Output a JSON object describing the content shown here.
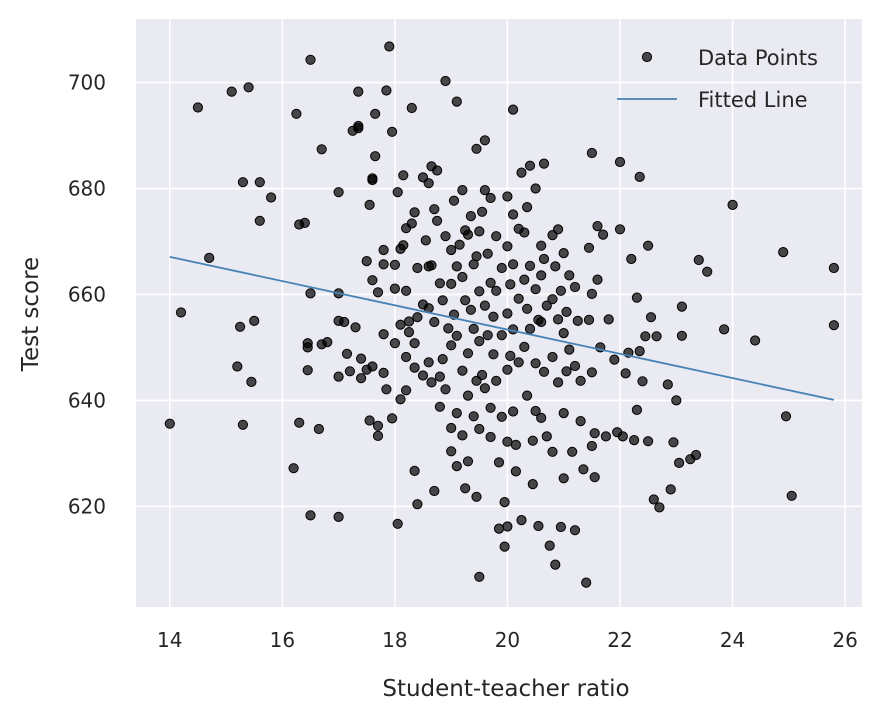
{
  "chart_data": {
    "type": "scatter",
    "title": "",
    "xlabel": "Student-teacher ratio",
    "ylabel": "Test score",
    "xlim": [
      13.4,
      26.3
    ],
    "ylim": [
      601,
      712
    ],
    "xticks": [
      14,
      16,
      18,
      20,
      22,
      24,
      26
    ],
    "yticks": [
      620,
      640,
      660,
      680,
      700
    ],
    "grid": true,
    "legend": {
      "position": "top-right",
      "entries": [
        "Data Points",
        "Fitted Line"
      ]
    },
    "colors": {
      "background": "#EAEAF2",
      "grid": "#FFFFFF",
      "points": "#000000",
      "line": "#4682B4"
    },
    "series": [
      {
        "name": "Data Points",
        "type": "scatter",
        "points": [
          [
            14.0,
            635.6
          ],
          [
            14.2,
            656.6
          ],
          [
            14.5,
            695.3
          ],
          [
            14.7,
            666.9
          ],
          [
            15.1,
            698.3
          ],
          [
            15.3,
            681.2
          ],
          [
            15.25,
            653.9
          ],
          [
            15.2,
            646.4
          ],
          [
            15.3,
            635.4
          ],
          [
            15.4,
            699.1
          ],
          [
            15.45,
            643.5
          ],
          [
            15.5,
            655.0
          ],
          [
            15.6,
            681.2
          ],
          [
            15.6,
            673.9
          ],
          [
            15.8,
            678.3
          ],
          [
            16.2,
            627.2
          ],
          [
            16.25,
            694.1
          ],
          [
            16.3,
            673.2
          ],
          [
            16.3,
            635.8
          ],
          [
            16.4,
            673.5
          ],
          [
            16.45,
            650.8
          ],
          [
            16.45,
            645.7
          ],
          [
            16.5,
            704.3
          ],
          [
            16.5,
            660.2
          ],
          [
            16.5,
            618.3
          ],
          [
            16.45,
            650.0
          ],
          [
            16.65,
            634.6
          ],
          [
            16.7,
            687.4
          ],
          [
            16.7,
            650.6
          ],
          [
            16.8,
            651.0
          ],
          [
            17.0,
            679.3
          ],
          [
            17.0,
            660.2
          ],
          [
            17.0,
            655.0
          ],
          [
            17.0,
            644.5
          ],
          [
            17.0,
            618.0
          ],
          [
            17.1,
            654.8
          ],
          [
            17.15,
            648.8
          ],
          [
            17.2,
            645.5
          ],
          [
            17.25,
            690.9
          ],
          [
            17.3,
            653.8
          ],
          [
            17.35,
            691.8
          ],
          [
            17.35,
            698.3
          ],
          [
            17.35,
            691.4
          ],
          [
            17.4,
            647.9
          ],
          [
            17.4,
            644.2
          ],
          [
            17.5,
            666.3
          ],
          [
            17.5,
            645.8
          ],
          [
            17.55,
            676.9
          ],
          [
            17.55,
            636.2
          ],
          [
            17.6,
            681.9
          ],
          [
            17.6,
            681.6
          ],
          [
            17.6,
            662.7
          ],
          [
            17.6,
            646.4
          ],
          [
            17.65,
            694.1
          ],
          [
            17.65,
            686.1
          ],
          [
            17.7,
            633.3
          ],
          [
            17.7,
            635.2
          ],
          [
            17.7,
            660.4
          ],
          [
            17.8,
            668.4
          ],
          [
            17.8,
            665.7
          ],
          [
            17.8,
            652.5
          ],
          [
            17.8,
            645.2
          ],
          [
            17.85,
            642.1
          ],
          [
            17.85,
            698.5
          ],
          [
            17.9,
            706.8
          ],
          [
            17.95,
            690.7
          ],
          [
            17.95,
            636.6
          ],
          [
            18.0,
            665.6
          ],
          [
            18.0,
            661.1
          ],
          [
            18.0,
            650.8
          ],
          [
            18.05,
            679.3
          ],
          [
            18.05,
            616.7
          ],
          [
            18.1,
            668.6
          ],
          [
            18.1,
            654.3
          ],
          [
            18.1,
            640.2
          ],
          [
            18.15,
            682.5
          ],
          [
            18.15,
            669.3
          ],
          [
            18.2,
            672.5
          ],
          [
            18.2,
            660.7
          ],
          [
            18.2,
            648.2
          ],
          [
            18.2,
            641.9
          ],
          [
            18.25,
            654.9
          ],
          [
            18.25,
            652.9
          ],
          [
            18.3,
            695.2
          ],
          [
            18.3,
            673.4
          ],
          [
            18.35,
            675.5
          ],
          [
            18.35,
            650.8
          ],
          [
            18.35,
            646.2
          ],
          [
            18.4,
            665.0
          ],
          [
            18.4,
            655.7
          ],
          [
            18.4,
            620.4
          ],
          [
            18.35,
            626.7
          ],
          [
            18.5,
            682.1
          ],
          [
            18.5,
            658.1
          ],
          [
            18.5,
            644.7
          ],
          [
            18.55,
            670.2
          ],
          [
            18.6,
            681.0
          ],
          [
            18.6,
            665.3
          ],
          [
            18.6,
            657.4
          ],
          [
            18.6,
            647.2
          ],
          [
            18.65,
            684.2
          ],
          [
            18.65,
            665.5
          ],
          [
            18.65,
            643.4
          ],
          [
            18.7,
            622.9
          ],
          [
            18.7,
            676.1
          ],
          [
            18.7,
            654.8
          ],
          [
            18.75,
            683.4
          ],
          [
            18.75,
            673.9
          ],
          [
            18.8,
            662.1
          ],
          [
            18.8,
            644.5
          ],
          [
            18.8,
            638.8
          ],
          [
            18.85,
            658.9
          ],
          [
            18.85,
            647.8
          ],
          [
            18.9,
            700.3
          ],
          [
            18.9,
            671.0
          ],
          [
            18.9,
            642.1
          ],
          [
            18.95,
            653.6
          ],
          [
            19.0,
            668.4
          ],
          [
            19.0,
            662.0
          ],
          [
            19.0,
            650.4
          ],
          [
            19.0,
            634.8
          ],
          [
            19.0,
            630.4
          ],
          [
            19.05,
            677.7
          ],
          [
            19.05,
            656.2
          ],
          [
            19.1,
            696.4
          ],
          [
            19.1,
            665.3
          ],
          [
            19.1,
            652.2
          ],
          [
            19.1,
            637.6
          ],
          [
            19.1,
            627.6
          ],
          [
            19.15,
            669.4
          ],
          [
            19.2,
            679.7
          ],
          [
            19.2,
            663.3
          ],
          [
            19.2,
            645.6
          ],
          [
            19.2,
            633.4
          ],
          [
            19.25,
            672.1
          ],
          [
            19.25,
            658.9
          ],
          [
            19.25,
            623.4
          ],
          [
            19.3,
            671.3
          ],
          [
            19.3,
            648.9
          ],
          [
            19.3,
            640.9
          ],
          [
            19.3,
            628.5
          ],
          [
            19.35,
            674.8
          ],
          [
            19.35,
            657.1
          ],
          [
            19.4,
            665.7
          ],
          [
            19.4,
            653.5
          ],
          [
            19.4,
            637.0
          ],
          [
            19.45,
            687.5
          ],
          [
            19.45,
            667.2
          ],
          [
            19.45,
            643.7
          ],
          [
            19.45,
            621.8
          ],
          [
            19.5,
            671.9
          ],
          [
            19.5,
            660.6
          ],
          [
            19.5,
            651.2
          ],
          [
            19.5,
            634.6
          ],
          [
            19.5,
            606.7
          ],
          [
            19.55,
            675.6
          ],
          [
            19.55,
            644.8
          ],
          [
            19.6,
            689.1
          ],
          [
            19.6,
            679.7
          ],
          [
            19.6,
            657.9
          ],
          [
            19.6,
            642.3
          ],
          [
            19.65,
            667.7
          ],
          [
            19.65,
            652.3
          ],
          [
            19.7,
            678.2
          ],
          [
            19.7,
            662.2
          ],
          [
            19.7,
            638.6
          ],
          [
            19.7,
            633.1
          ],
          [
            19.75,
            655.8
          ],
          [
            19.75,
            648.7
          ],
          [
            19.8,
            671.0
          ],
          [
            19.8,
            660.7
          ],
          [
            19.8,
            643.7
          ],
          [
            19.85,
            628.3
          ],
          [
            19.85,
            615.8
          ],
          [
            19.9,
            665.0
          ],
          [
            19.9,
            652.3
          ],
          [
            19.9,
            636.9
          ],
          [
            19.95,
            620.8
          ],
          [
            19.95,
            612.4
          ],
          [
            20.0,
            678.5
          ],
          [
            20.0,
            669.1
          ],
          [
            20.0,
            656.4
          ],
          [
            20.0,
            645.8
          ],
          [
            20.0,
            632.2
          ],
          [
            20.0,
            616.2
          ],
          [
            20.05,
            661.9
          ],
          [
            20.05,
            648.4
          ],
          [
            20.1,
            694.9
          ],
          [
            20.1,
            675.1
          ],
          [
            20.1,
            665.7
          ],
          [
            20.1,
            653.4
          ],
          [
            20.1,
            637.9
          ],
          [
            20.15,
            631.6
          ],
          [
            20.15,
            626.6
          ],
          [
            20.2,
            672.4
          ],
          [
            20.2,
            659.2
          ],
          [
            20.2,
            647.2
          ],
          [
            20.25,
            683.0
          ],
          [
            20.25,
            617.4
          ],
          [
            20.3,
            671.7
          ],
          [
            20.3,
            662.8
          ],
          [
            20.3,
            650.1
          ],
          [
            20.35,
            676.5
          ],
          [
            20.35,
            657.3
          ],
          [
            20.35,
            640.9
          ],
          [
            20.4,
            684.3
          ],
          [
            20.4,
            665.4
          ],
          [
            20.4,
            653.5
          ],
          [
            20.45,
            632.4
          ],
          [
            20.45,
            624.2
          ],
          [
            20.5,
            680.0
          ],
          [
            20.5,
            661.0
          ],
          [
            20.5,
            647.0
          ],
          [
            20.5,
            638.0
          ],
          [
            20.55,
            655.2
          ],
          [
            20.55,
            616.3
          ],
          [
            20.6,
            669.2
          ],
          [
            20.6,
            663.6
          ],
          [
            20.6,
            654.8
          ],
          [
            20.6,
            636.7
          ],
          [
            20.65,
            684.7
          ],
          [
            20.65,
            666.7
          ],
          [
            20.65,
            645.4
          ],
          [
            20.7,
            657.9
          ],
          [
            20.7,
            633.2
          ],
          [
            20.75,
            612.6
          ],
          [
            20.8,
            671.2
          ],
          [
            20.8,
            659.1
          ],
          [
            20.8,
            648.2
          ],
          [
            20.8,
            630.3
          ],
          [
            20.85,
            665.3
          ],
          [
            20.85,
            609.0
          ],
          [
            20.9,
            672.3
          ],
          [
            20.9,
            655.3
          ],
          [
            20.9,
            643.4
          ],
          [
            20.95,
            660.7
          ],
          [
            20.95,
            616.1
          ],
          [
            21.0,
            667.8
          ],
          [
            21.0,
            652.7
          ],
          [
            21.0,
            637.6
          ],
          [
            21.0,
            625.3
          ],
          [
            21.05,
            656.7
          ],
          [
            21.05,
            645.5
          ],
          [
            21.1,
            663.6
          ],
          [
            21.1,
            649.6
          ],
          [
            21.15,
            630.3
          ],
          [
            21.2,
            661.4
          ],
          [
            21.2,
            646.5
          ],
          [
            21.2,
            615.5
          ],
          [
            21.25,
            655.0
          ],
          [
            21.3,
            643.7
          ],
          [
            21.3,
            636.1
          ],
          [
            21.35,
            627.0
          ],
          [
            21.4,
            605.6
          ],
          [
            21.45,
            668.8
          ],
          [
            21.45,
            655.2
          ],
          [
            21.5,
            686.7
          ],
          [
            21.5,
            660.1
          ],
          [
            21.5,
            645.3
          ],
          [
            21.5,
            631.4
          ],
          [
            21.55,
            633.8
          ],
          [
            21.55,
            625.5
          ],
          [
            21.6,
            672.9
          ],
          [
            21.6,
            662.8
          ],
          [
            21.65,
            650.0
          ],
          [
            21.7,
            671.3
          ],
          [
            21.75,
            633.2
          ],
          [
            21.8,
            655.3
          ],
          [
            21.9,
            647.7
          ],
          [
            21.95,
            634.0
          ],
          [
            22.0,
            685.0
          ],
          [
            22.0,
            672.3
          ],
          [
            22.05,
            633.2
          ],
          [
            22.1,
            645.1
          ],
          [
            22.15,
            649.0
          ],
          [
            22.2,
            666.7
          ],
          [
            22.25,
            632.5
          ],
          [
            22.3,
            659.4
          ],
          [
            22.3,
            638.2
          ],
          [
            22.35,
            682.2
          ],
          [
            22.35,
            649.3
          ],
          [
            22.4,
            643.6
          ],
          [
            22.45,
            652.1
          ],
          [
            22.5,
            669.2
          ],
          [
            22.5,
            632.3
          ],
          [
            22.55,
            655.7
          ],
          [
            22.6,
            621.3
          ],
          [
            22.65,
            652.1
          ],
          [
            22.7,
            619.8
          ],
          [
            22.85,
            643.0
          ],
          [
            22.9,
            623.2
          ],
          [
            22.95,
            632.1
          ],
          [
            23.0,
            640.0
          ],
          [
            23.05,
            628.2
          ],
          [
            23.1,
            652.2
          ],
          [
            23.1,
            657.7
          ],
          [
            23.25,
            628.9
          ],
          [
            23.35,
            629.7
          ],
          [
            23.4,
            666.5
          ],
          [
            23.55,
            664.3
          ],
          [
            23.85,
            653.4
          ],
          [
            24.0,
            676.9
          ],
          [
            24.4,
            651.3
          ],
          [
            24.9,
            668.0
          ],
          [
            24.95,
            637.0
          ],
          [
            25.05,
            622.0
          ],
          [
            25.8,
            665.0
          ],
          [
            25.8,
            654.2
          ]
        ]
      },
      {
        "name": "Fitted Line",
        "type": "line",
        "x": [
          14.0,
          25.8
        ],
        "y": [
          667.1,
          640.1
        ]
      }
    ]
  }
}
